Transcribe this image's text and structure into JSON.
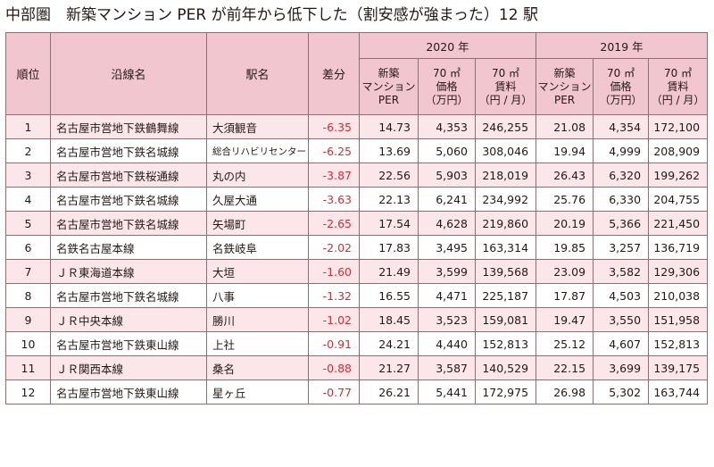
{
  "title": "中部圏　新築マンション PER が前年から低下した（割安感が強まった）12 駅",
  "columns": {
    "rank": "順位",
    "line": "沿線名",
    "station": "駅名",
    "diff": "差分",
    "group_2020": "2020 年",
    "group_2019": "2019 年",
    "per": [
      "新築",
      "マンション",
      "PER"
    ],
    "price": [
      "70 ㎡",
      "価格",
      "（万円）"
    ],
    "rent": [
      "70 ㎡",
      "賃料",
      "（円 / 月）"
    ]
  },
  "rows": [
    {
      "rank": "1",
      "line": "名古屋市営地下鉄鶴舞線",
      "station": "大須観音",
      "diff": "-6.35",
      "per2020": "14.73",
      "price2020": "4,353",
      "rent2020": "246,255",
      "per2019": "21.08",
      "price2019": "4,354",
      "rent2019": "172,100"
    },
    {
      "rank": "2",
      "line": "名古屋市営地下鉄名城線",
      "station": "総合リハビリセンター",
      "diff": "-6.25",
      "per2020": "13.69",
      "price2020": "5,060",
      "rent2020": "308,046",
      "per2019": "19.94",
      "price2019": "4,999",
      "rent2019": "208,909"
    },
    {
      "rank": "3",
      "line": "名古屋市営地下鉄桜通線",
      "station": "丸の内",
      "diff": "-3.87",
      "per2020": "22.56",
      "price2020": "5,903",
      "rent2020": "218,019",
      "per2019": "26.43",
      "price2019": "6,320",
      "rent2019": "199,262"
    },
    {
      "rank": "4",
      "line": "名古屋市営地下鉄名城線",
      "station": "久屋大通",
      "diff": "-3.63",
      "per2020": "22.13",
      "price2020": "6,241",
      "rent2020": "234,992",
      "per2019": "25.76",
      "price2019": "6,330",
      "rent2019": "204,755"
    },
    {
      "rank": "5",
      "line": "名古屋市営地下鉄名城線",
      "station": "矢場町",
      "diff": "-2.65",
      "per2020": "17.54",
      "price2020": "4,628",
      "rent2020": "219,860",
      "per2019": "20.19",
      "price2019": "5,366",
      "rent2019": "221,450"
    },
    {
      "rank": "6",
      "line": "名鉄名古屋本線",
      "station": "名鉄岐阜",
      "diff": "-2.02",
      "per2020": "17.83",
      "price2020": "3,495",
      "rent2020": "163,314",
      "per2019": "19.85",
      "price2019": "3,257",
      "rent2019": "136,719"
    },
    {
      "rank": "7",
      "line": "ＪＲ東海道本線",
      "station": "大垣",
      "diff": "-1.60",
      "per2020": "21.49",
      "price2020": "3,599",
      "rent2020": "139,568",
      "per2019": "23.09",
      "price2019": "3,582",
      "rent2019": "129,306"
    },
    {
      "rank": "8",
      "line": "名古屋市営地下鉄名城線",
      "station": "八事",
      "diff": "-1.32",
      "per2020": "16.55",
      "price2020": "4,471",
      "rent2020": "225,187",
      "per2019": "17.87",
      "price2019": "4,503",
      "rent2019": "210,038"
    },
    {
      "rank": "9",
      "line": "ＪＲ中央本線",
      "station": "勝川",
      "diff": "-1.02",
      "per2020": "18.45",
      "price2020": "3,523",
      "rent2020": "159,081",
      "per2019": "19.47",
      "price2019": "3,550",
      "rent2019": "151,958"
    },
    {
      "rank": "10",
      "line": "名古屋市営地下鉄東山線",
      "station": "上社",
      "diff": "-0.91",
      "per2020": "24.21",
      "price2020": "4,440",
      "rent2020": "152,813",
      "per2019": "25.12",
      "price2019": "4,607",
      "rent2019": "152,813"
    },
    {
      "rank": "11",
      "line": "ＪＲ関西本線",
      "station": "桑名",
      "diff": "-0.88",
      "per2020": "21.27",
      "price2020": "3,587",
      "rent2020": "140,529",
      "per2019": "22.15",
      "price2019": "3,699",
      "rent2019": "139,175"
    },
    {
      "rank": "12",
      "line": "名古屋市営地下鉄東山線",
      "station": "星ヶ丘",
      "diff": "-0.77",
      "per2020": "26.21",
      "price2020": "5,441",
      "rent2020": "172,975",
      "per2019": "26.98",
      "price2019": "5,302",
      "rent2019": "163,744"
    }
  ]
}
